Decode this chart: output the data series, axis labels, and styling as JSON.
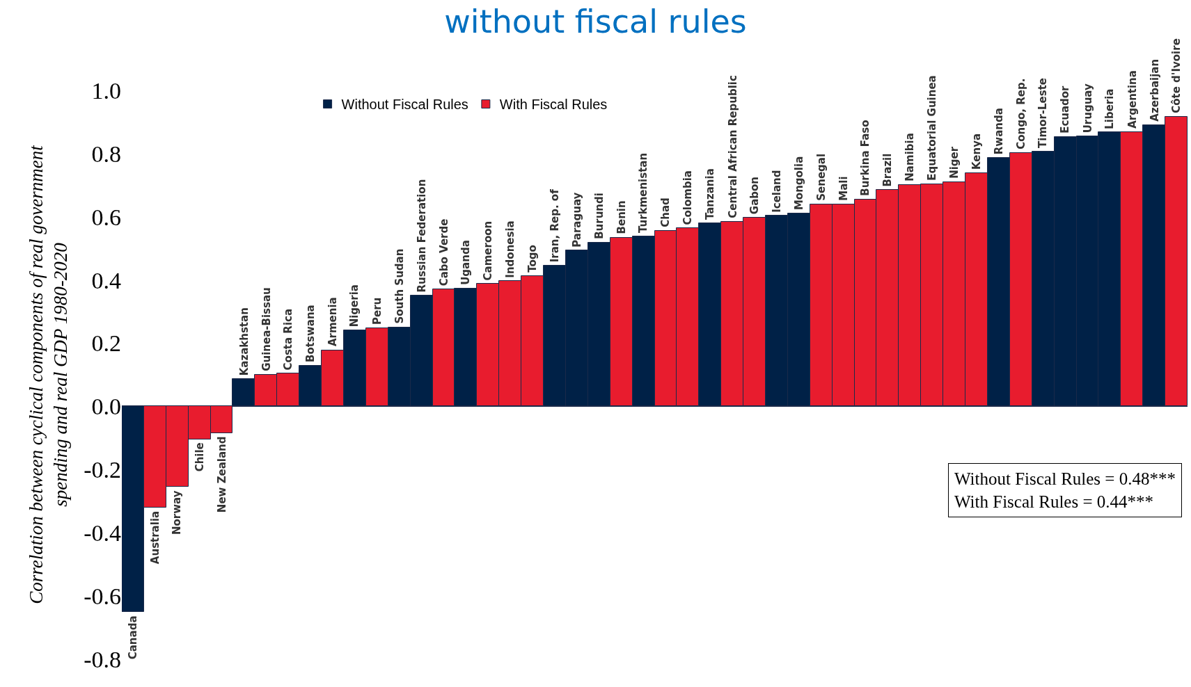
{
  "chart_data": {
    "type": "bar",
    "title": "without fiscal rules",
    "ylabel": "Correlation between cyclical components of real government spending and real GDP 1980-2020",
    "categories": [
      "Canada",
      "Australia",
      "Norway",
      "Chile",
      "New Zealand",
      "Kazakhstan",
      "Guinea-Bissau",
      "Costa Rica",
      "Botswana",
      "Armenia",
      "Nigeria",
      "Peru",
      "South Sudan",
      "Russian Federation",
      "Cabo Verde",
      "Uganda",
      "Cameroon",
      "Indonesia",
      "Togo",
      "Iran, Rep. of",
      "Paraguay",
      "Burundi",
      "Benin",
      "Turkmenistan",
      "Chad",
      "Colombia",
      "Tanzania",
      "Central African Republic",
      "Gabon",
      "Iceland",
      "Mongolia",
      "Senegal",
      "Mali",
      "Burkina Faso",
      "Brazil",
      "Namibia",
      "Equatorial Guinea",
      "Niger",
      "Kenya",
      "Rwanda",
      "Congo, Rep.",
      "Timor-Leste",
      "Ecuador",
      "Uruguay",
      "Liberia",
      "Argentina",
      "Azerbaijan",
      "Côte d'Ivoire"
    ],
    "series": [
      {
        "name": "Without Fiscal Rules",
        "color": "#002147",
        "values": [
          -0.65,
          null,
          null,
          null,
          null,
          0.087,
          null,
          null,
          0.128,
          null,
          0.241,
          null,
          0.25,
          0.35,
          null,
          0.373,
          null,
          null,
          null,
          0.446,
          0.493,
          0.519,
          null,
          0.538,
          null,
          null,
          0.58,
          null,
          null,
          0.603,
          0.611,
          null,
          null,
          null,
          null,
          null,
          null,
          null,
          null,
          0.787,
          null,
          0.807,
          0.853,
          0.854,
          0.867,
          null,
          0.891,
          null
        ]
      },
      {
        "name": "With Fiscal Rules",
        "color": "#e81c2e",
        "values": [
          null,
          -0.321,
          -0.255,
          -0.104,
          -0.084,
          null,
          0.1,
          0.104,
          null,
          0.178,
          null,
          0.248,
          null,
          null,
          0.37,
          null,
          0.388,
          0.396,
          0.413,
          null,
          null,
          null,
          0.534,
          null,
          0.556,
          0.564,
          null,
          0.585,
          0.597,
          null,
          null,
          0.639,
          0.64,
          0.655,
          0.685,
          0.701,
          0.703,
          0.709,
          0.738,
          null,
          0.802,
          null,
          null,
          null,
          null,
          0.869,
          null,
          0.917
        ]
      }
    ],
    "ylim": [
      -0.8,
      1.0
    ],
    "yticks": [
      {
        "value": -0.8,
        "label": "-0.8"
      },
      {
        "value": -0.6,
        "label": "-0.6"
      },
      {
        "value": -0.4,
        "label": "-0.4"
      },
      {
        "value": -0.2,
        "label": "-0.2"
      },
      {
        "value": 0,
        "label": "0.0"
      },
      {
        "value": 0.2,
        "label": "0.2"
      },
      {
        "value": 0.4,
        "label": "0.4"
      },
      {
        "value": 0.6,
        "label": "0.6"
      },
      {
        "value": 0.8,
        "label": "0.8"
      },
      {
        "value": 1,
        "label": "1.0"
      }
    ],
    "legend": "top",
    "annotations": [
      "Without Fiscal Rules = 0.48***\nWith Fiscal Rules = 0.44***"
    ]
  }
}
